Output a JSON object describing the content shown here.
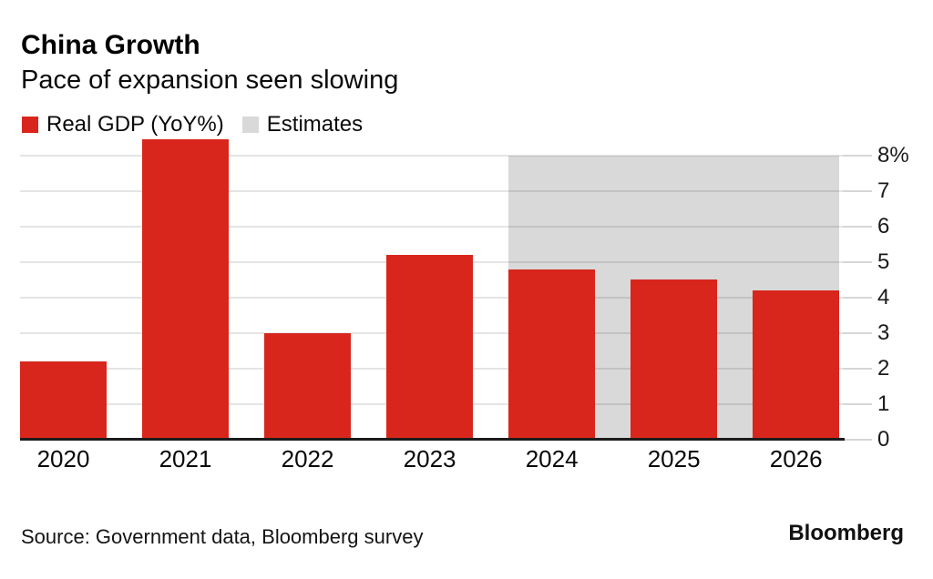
{
  "header": {
    "title": "China Growth",
    "subtitle": "Pace of expansion seen slowing"
  },
  "legend": {
    "items": [
      {
        "label": "Real GDP (YoY%)",
        "color": "#d8261c"
      },
      {
        "label": "Estimates",
        "color": "#d9d9d9"
      }
    ]
  },
  "chart_data": {
    "type": "bar",
    "title": "China Growth",
    "subtitle": "Pace of expansion seen slowing",
    "categories": [
      "2020",
      "2021",
      "2022",
      "2023",
      "2024",
      "2025",
      "2026"
    ],
    "series": [
      {
        "name": "Real GDP (YoY%)",
        "values": [
          2.2,
          8.45,
          3.0,
          5.2,
          4.8,
          4.5,
          4.2
        ]
      }
    ],
    "estimates": {
      "label": "Estimates",
      "categories": [
        "2024",
        "2025",
        "2026"
      ]
    },
    "ylim": [
      0,
      8
    ],
    "ytick_labels": [
      "8%",
      "7",
      "6",
      "5",
      "4",
      "3",
      "2",
      "1",
      "0"
    ],
    "ytick_values": [
      8,
      7,
      6,
      5,
      4,
      3,
      2,
      1,
      0
    ],
    "grid": "horizontal",
    "legend_position": "top-left",
    "yaxis_side": "right",
    "bar_color": "#d8261c",
    "estimate_band_color": "#d9d9d9",
    "axis_line_color": "#1c1c1c"
  },
  "footer": {
    "source": "Source: Government data, Bloomberg survey",
    "brand": "Bloomberg"
  }
}
